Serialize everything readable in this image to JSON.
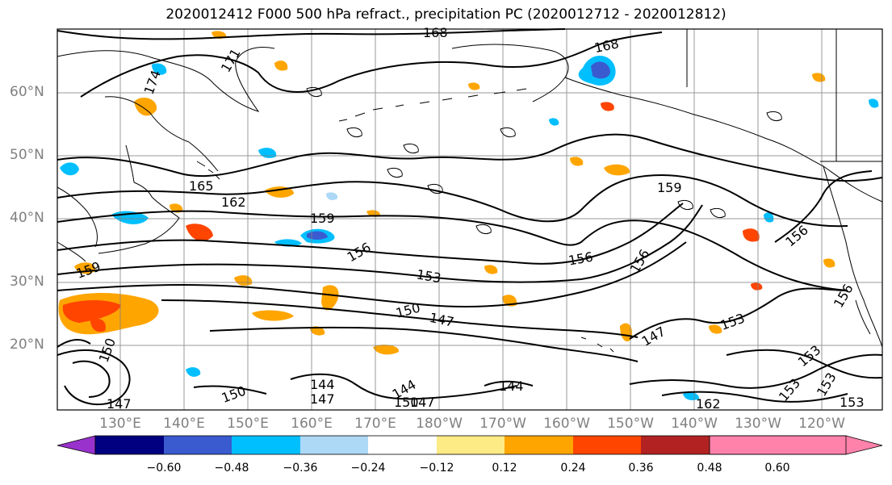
{
  "title": "2020012412 F000 500 hPa refract., precipitation PC (2020012712 - 2020012812)",
  "lat_labels": [
    "60°N",
    "50°N",
    "40°N",
    "30°N",
    "20°N"
  ],
  "lon_labels": [
    "130°E",
    "140°E",
    "150°E",
    "160°E",
    "170°E",
    "180°W",
    "170°W",
    "160°W",
    "150°W",
    "140°W",
    "130°W",
    "120°W"
  ],
  "contour_labels": [
    "168",
    "171",
    "174",
    "168",
    "165",
    "162",
    "159",
    "156",
    "159",
    "156",
    "156",
    "153",
    "150",
    "147",
    "147",
    "153",
    "156",
    "159",
    "150",
    "147",
    "144",
    "147",
    "150",
    "144",
    "144",
    "150",
    "147",
    "162",
    "153",
    "153",
    "156",
    "153",
    "153"
  ],
  "colorbar": {
    "ticks": [
      "−0.60",
      "−0.48",
      "−0.36",
      "−0.24",
      "−0.12",
      "0.12",
      "0.24",
      "0.36",
      "0.48",
      "0.60"
    ],
    "colors": [
      "#9932cc",
      "#000080",
      "#3a5bcf",
      "#00bfff",
      "#add8f6",
      "#ffffff",
      "#fdeb85",
      "#ffa500",
      "#ff4500",
      "#b22222",
      "#ff82ab"
    ]
  },
  "colors": {
    "contour": "#000000",
    "grid": "#808080",
    "coast": "#000000"
  }
}
